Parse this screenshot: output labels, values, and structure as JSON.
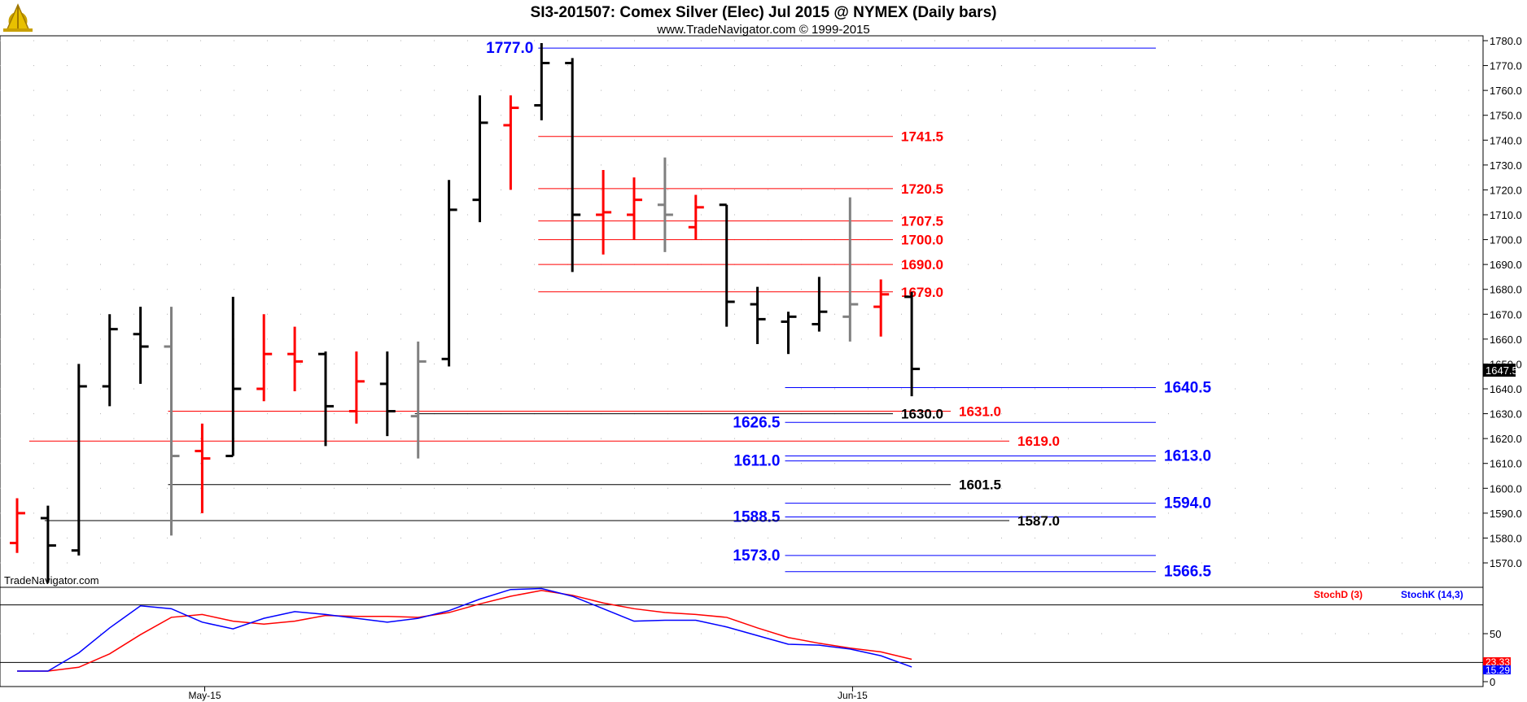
{
  "header": {
    "title": "SI3-201507:  Comex Silver (Elec) Jul 2015 @ NYMEX  (Daily bars)",
    "subtitle": "www.TradeNavigator.com © 1999-2015",
    "watermark": "TradeNavigator.com",
    "logo_icon": "sextant-logo-icon"
  },
  "colors": {
    "up": "#000000",
    "down": "#ff0000",
    "neutral": "#808080",
    "blue": "#0000ff",
    "red": "#ff0000",
    "black": "#000000"
  },
  "chart_data": [
    {
      "type": "ohlc",
      "ylim": [
        1560,
        1782
      ],
      "yticks": [
        1570.0,
        1580.0,
        1590.0,
        1600.0,
        1610.0,
        1620.0,
        1630.0,
        1640.0,
        1650.0,
        1660.0,
        1670.0,
        1680.0,
        1690.0,
        1700.0,
        1710.0,
        1720.0,
        1730.0,
        1740.0,
        1750.0,
        1760.0,
        1770.0,
        1780.0
      ],
      "last_price_label": "1647.5",
      "last_price": 1647.5,
      "xticks": [
        {
          "label": "May-15",
          "bar": 5
        },
        {
          "label": "Jun-15",
          "bar": 26
        }
      ],
      "bars": [
        {
          "o": 1578,
          "h": 1596,
          "l": 1574,
          "c": 1590,
          "color": "down"
        },
        {
          "o": 1588,
          "h": 1593,
          "l": 1562,
          "c": 1577,
          "color": "up"
        },
        {
          "o": 1575,
          "h": 1650,
          "l": 1573,
          "c": 1641,
          "color": "up"
        },
        {
          "o": 1641,
          "h": 1670,
          "l": 1633,
          "c": 1664,
          "color": "up"
        },
        {
          "o": 1662,
          "h": 1673,
          "l": 1642,
          "c": 1657,
          "color": "up"
        },
        {
          "o": 1657,
          "h": 1673,
          "l": 1581,
          "c": 1613,
          "color": "neutral"
        },
        {
          "o": 1615,
          "h": 1626,
          "l": 1590,
          "c": 1612,
          "color": "down"
        },
        {
          "o": 1613,
          "h": 1677,
          "l": 1613,
          "c": 1640,
          "color": "up"
        },
        {
          "o": 1640,
          "h": 1670,
          "l": 1635,
          "c": 1654,
          "color": "down"
        },
        {
          "o": 1654,
          "h": 1665,
          "l": 1639,
          "c": 1651,
          "color": "down"
        },
        {
          "o": 1654,
          "h": 1655,
          "l": 1617,
          "c": 1633,
          "color": "up"
        },
        {
          "o": 1631,
          "h": 1655,
          "l": 1626,
          "c": 1643,
          "color": "down"
        },
        {
          "o": 1642,
          "h": 1655,
          "l": 1621,
          "c": 1631,
          "color": "up"
        },
        {
          "o": 1629,
          "h": 1659,
          "l": 1612,
          "c": 1651,
          "color": "neutral"
        },
        {
          "o": 1652,
          "h": 1724,
          "l": 1649,
          "c": 1712,
          "color": "up"
        },
        {
          "o": 1716,
          "h": 1758,
          "l": 1707,
          "c": 1747,
          "color": "up"
        },
        {
          "o": 1746,
          "h": 1758,
          "l": 1720,
          "c": 1753,
          "color": "down"
        },
        {
          "o": 1754,
          "h": 1779,
          "l": 1748,
          "c": 1771,
          "color": "up"
        },
        {
          "o": 1771,
          "h": 1773,
          "l": 1687,
          "c": 1710,
          "color": "up"
        },
        {
          "o": 1710,
          "h": 1728,
          "l": 1694,
          "c": 1711,
          "color": "down"
        },
        {
          "o": 1710,
          "h": 1725,
          "l": 1700,
          "c": 1716,
          "color": "down"
        },
        {
          "o": 1714,
          "h": 1733,
          "l": 1695,
          "c": 1710,
          "color": "neutral"
        },
        {
          "o": 1705,
          "h": 1718,
          "l": 1700,
          "c": 1713,
          "color": "down"
        },
        {
          "o": 1714,
          "h": 1714,
          "l": 1665,
          "c": 1675,
          "color": "up"
        },
        {
          "o": 1674,
          "h": 1681,
          "l": 1658,
          "c": 1668,
          "color": "up"
        },
        {
          "o": 1667,
          "h": 1671,
          "l": 1654,
          "c": 1669,
          "color": "up"
        },
        {
          "o": 1666,
          "h": 1685,
          "l": 1663,
          "c": 1671,
          "color": "up"
        },
        {
          "o": 1669,
          "h": 1717,
          "l": 1659,
          "c": 1674,
          "color": "neutral"
        },
        {
          "o": 1673,
          "h": 1684,
          "l": 1661,
          "c": 1678,
          "color": "down"
        },
        {
          "o": 1677,
          "h": 1679,
          "l": 1637,
          "c": 1648,
          "color": "up"
        }
      ],
      "levels": [
        {
          "value": 1777.0,
          "label": "1777.0",
          "color": "blue",
          "from_bar": 17,
          "to_x": 1420,
          "label_side": "left"
        },
        {
          "value": 1741.5,
          "label": "1741.5",
          "color": "red",
          "from_bar": 17,
          "to_x": 1097,
          "label_side": "right"
        },
        {
          "value": 1720.5,
          "label": "1720.5",
          "color": "red",
          "from_bar": 17,
          "to_x": 1097,
          "label_side": "right"
        },
        {
          "value": 1707.5,
          "label": "1707.5",
          "color": "red",
          "from_bar": 17,
          "to_x": 1097,
          "label_side": "right"
        },
        {
          "value": 1700.0,
          "label": "1700.0",
          "color": "red",
          "from_bar": 17,
          "to_x": 1097,
          "label_side": "right"
        },
        {
          "value": 1690.0,
          "label": "1690.0",
          "color": "red",
          "from_bar": 17,
          "to_x": 1097,
          "label_side": "right"
        },
        {
          "value": 1679.0,
          "label": "1679.0",
          "color": "red",
          "from_bar": 17,
          "to_x": 1097,
          "label_side": "right"
        },
        {
          "value": 1640.5,
          "label": "1640.5",
          "color": "blue",
          "from_bar": 25,
          "to_x": 1420,
          "label_side": "right"
        },
        {
          "value": 1631.0,
          "label": "1631.0",
          "color": "red",
          "from_bar": 5,
          "to_x": 1168,
          "label_side": "right"
        },
        {
          "value": 1630.0,
          "label": "1630.0",
          "color": "black",
          "from_bar": 13,
          "to_x": 1097,
          "label_side": "right"
        },
        {
          "value": 1626.5,
          "label": "1626.5",
          "color": "blue",
          "from_bar": 25,
          "to_x": 1420,
          "label_side": "left"
        },
        {
          "value": 1619.0,
          "label": "1619.0",
          "color": "red",
          "from_bar": 0.5,
          "to_x": 1240,
          "label_side": "right"
        },
        {
          "value": 1613.0,
          "label": "1613.0",
          "color": "blue",
          "from_bar": 25,
          "to_x": 1420,
          "label_side": "right"
        },
        {
          "value": 1611.0,
          "label": "1611.0",
          "color": "blue",
          "from_bar": 25,
          "to_x": 1420,
          "label_side": "left"
        },
        {
          "value": 1601.5,
          "label": "1601.5",
          "color": "black",
          "from_bar": 5,
          "to_x": 1168,
          "label_side": "right"
        },
        {
          "value": 1594.0,
          "label": "1594.0",
          "color": "blue",
          "from_bar": 25,
          "to_x": 1420,
          "label_side": "right"
        },
        {
          "value": 1588.5,
          "label": "1588.5",
          "color": "blue",
          "from_bar": 25,
          "to_x": 1420,
          "label_side": "left"
        },
        {
          "value": 1587.0,
          "label": "1587.0",
          "color": "black",
          "from_bar": 1,
          "to_x": 1240,
          "label_side": "right"
        },
        {
          "value": 1573.0,
          "label": "1573.0",
          "color": "blue",
          "from_bar": 25,
          "to_x": 1420,
          "label_side": "left"
        },
        {
          "value": 1566.5,
          "label": "1566.5",
          "color": "blue",
          "from_bar": 25,
          "to_x": 1420,
          "label_side": "right"
        }
      ]
    },
    {
      "type": "line",
      "ylim": [
        0,
        100
      ],
      "ref_lines": [
        20,
        80
      ],
      "yticks": [
        {
          "value": 50,
          "label": "50"
        },
        {
          "value": 0,
          "label": "0"
        }
      ],
      "legend": [
        {
          "name": "StochD (3)",
          "color": "red"
        },
        {
          "name": "StochK (14,3)",
          "color": "blue"
        }
      ],
      "last_labels": [
        {
          "label": "23.33",
          "value": 23.33,
          "color": "red"
        },
        {
          "label": "15.29",
          "value": 15.29,
          "color": "blue"
        }
      ],
      "series": [
        {
          "name": "StochD (3)",
          "color": "red",
          "values": [
            11,
            11,
            15,
            29,
            49,
            67,
            70,
            63,
            60,
            63,
            69,
            68,
            68,
            67,
            72,
            81,
            89,
            95,
            90,
            82,
            76,
            72,
            70,
            67,
            56,
            46,
            40,
            35,
            31,
            23.33
          ]
        },
        {
          "name": "StochK (14,3)",
          "color": "blue",
          "values": [
            11,
            11,
            30,
            56,
            79,
            76,
            62,
            55,
            66,
            73,
            70,
            66,
            62,
            66,
            74,
            86,
            96,
            97,
            89,
            76,
            63,
            64,
            64,
            57,
            48,
            39,
            38,
            34,
            27,
            15.29
          ]
        }
      ]
    }
  ]
}
